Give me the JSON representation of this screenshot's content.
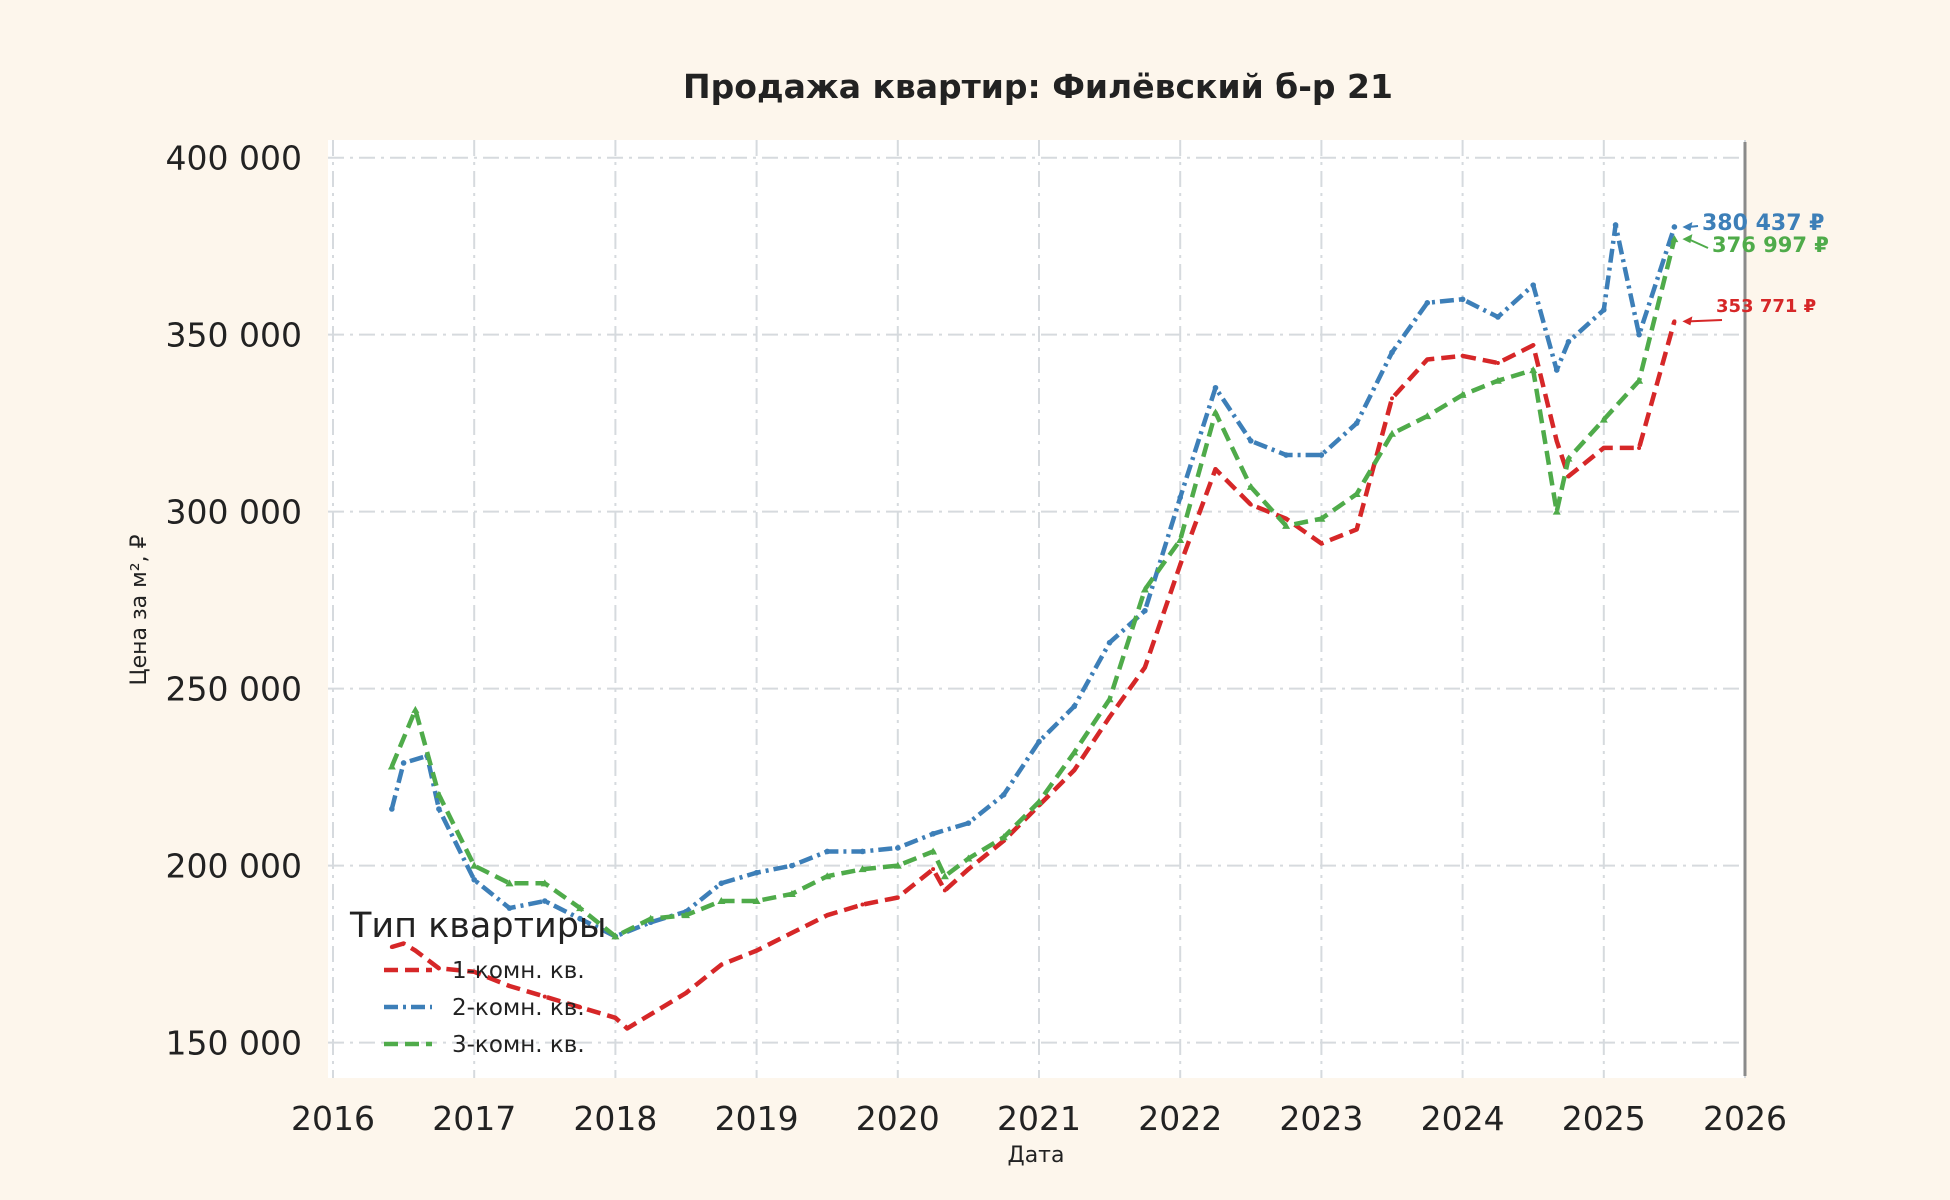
{
  "chart_data": {
    "type": "line",
    "title": "Продажа квартир: Филёвский б-р 21",
    "xlabel": "Дата",
    "ylabel": "Цена за м², ₽",
    "xlim": [
      2016,
      2026
    ],
    "ylim": [
      140000,
      405000
    ],
    "grid": true,
    "legend_title": "Тип квартиры",
    "legend_position": "lower-left",
    "x_ticks": [
      "2016",
      "2017",
      "2018",
      "2019",
      "2020",
      "2021",
      "2022",
      "2023",
      "2024",
      "2025",
      "2026"
    ],
    "y_ticks": [
      "150 000",
      "200 000",
      "250 000",
      "300 000",
      "350 000",
      "400 000"
    ],
    "series": [
      {
        "name": "1-комн. кв.",
        "color": "#d62728",
        "style": "dashed",
        "x": [
          "2016-06",
          "2016-07",
          "2016-08",
          "2016-10",
          "2017-01",
          "2017-04",
          "2017-07",
          "2017-10",
          "2018-01",
          "2018-02",
          "2018-04",
          "2018-07",
          "2018-10",
          "2019-01",
          "2019-04",
          "2019-07",
          "2019-10",
          "2020-01",
          "2020-04",
          "2020-05",
          "2020-07",
          "2020-10",
          "2021-01",
          "2021-04",
          "2021-07",
          "2021-10",
          "2022-01",
          "2022-04",
          "2022-07",
          "2022-10",
          "2023-01",
          "2023-04",
          "2023-07",
          "2023-10",
          "2024-01",
          "2024-04",
          "2024-07",
          "2024-09",
          "2024-10",
          "2025-01",
          "2025-04",
          "2025-07"
        ],
        "y": [
          177000,
          178000,
          176000,
          171000,
          170000,
          166000,
          163000,
          160000,
          157000,
          154000,
          158000,
          164000,
          172000,
          176000,
          181000,
          186000,
          189000,
          191000,
          199000,
          193000,
          199000,
          207000,
          217000,
          227000,
          242000,
          256000,
          285000,
          312000,
          302000,
          298000,
          291000,
          295000,
          332000,
          343000,
          344000,
          342000,
          347000,
          320000,
          310000,
          318000,
          318000,
          353771
        ]
      },
      {
        "name": "2-комн. кв.",
        "color": "#3d7fb8",
        "style": "dashdot",
        "x": [
          "2016-06",
          "2016-07",
          "2016-09",
          "2016-10",
          "2017-01",
          "2017-04",
          "2017-07",
          "2017-10",
          "2018-01",
          "2018-04",
          "2018-07",
          "2018-10",
          "2019-01",
          "2019-04",
          "2019-07",
          "2019-10",
          "2020-01",
          "2020-04",
          "2020-07",
          "2020-10",
          "2021-01",
          "2021-04",
          "2021-07",
          "2021-10",
          "2022-01",
          "2022-04",
          "2022-07",
          "2022-10",
          "2023-01",
          "2023-04",
          "2023-07",
          "2023-10",
          "2024-01",
          "2024-04",
          "2024-07",
          "2024-09",
          "2024-10",
          "2025-01",
          "2025-02",
          "2025-04",
          "2025-07"
        ],
        "y": [
          216000,
          229000,
          231000,
          216000,
          196000,
          188000,
          190000,
          185000,
          180000,
          184000,
          187000,
          195000,
          198000,
          200000,
          204000,
          204000,
          205000,
          209000,
          212000,
          220000,
          235000,
          245000,
          263000,
          272000,
          304000,
          335000,
          320000,
          316000,
          316000,
          325000,
          345000,
          359000,
          360000,
          355000,
          364000,
          340000,
          348000,
          357000,
          381000,
          350000,
          380437
        ]
      },
      {
        "name": "3-комн. кв.",
        "color": "#4fab4a",
        "style": "dashed",
        "x": [
          "2016-06",
          "2016-08",
          "2016-10",
          "2017-01",
          "2017-04",
          "2017-07",
          "2017-10",
          "2018-01",
          "2018-04",
          "2018-07",
          "2018-10",
          "2019-01",
          "2019-04",
          "2019-07",
          "2019-10",
          "2020-01",
          "2020-04",
          "2020-05",
          "2020-07",
          "2020-10",
          "2021-01",
          "2021-04",
          "2021-07",
          "2021-10",
          "2022-01",
          "2022-04",
          "2022-07",
          "2022-10",
          "2023-01",
          "2023-04",
          "2023-07",
          "2023-10",
          "2024-01",
          "2024-04",
          "2024-07",
          "2024-09",
          "2024-10",
          "2025-01",
          "2025-04",
          "2025-07"
        ],
        "y": [
          228000,
          244000,
          220000,
          200000,
          195000,
          195000,
          188000,
          180000,
          185000,
          186000,
          190000,
          190000,
          192000,
          197000,
          199000,
          200000,
          204000,
          197000,
          202000,
          208000,
          218000,
          232000,
          247000,
          278000,
          292000,
          328000,
          307000,
          296000,
          298000,
          305000,
          322000,
          327000,
          333000,
          337000,
          340000,
          300000,
          315000,
          326000,
          337000,
          376997
        ]
      }
    ],
    "annotations": [
      {
        "series": "2-комн. кв.",
        "text": "380 437 ₽",
        "value": 380437
      },
      {
        "series": "3-комн. кв.",
        "text": "376 997 ₽",
        "value": 376997
      },
      {
        "series": "1-комн. кв.",
        "text": "353 771 ₽",
        "value": 353771
      }
    ]
  }
}
